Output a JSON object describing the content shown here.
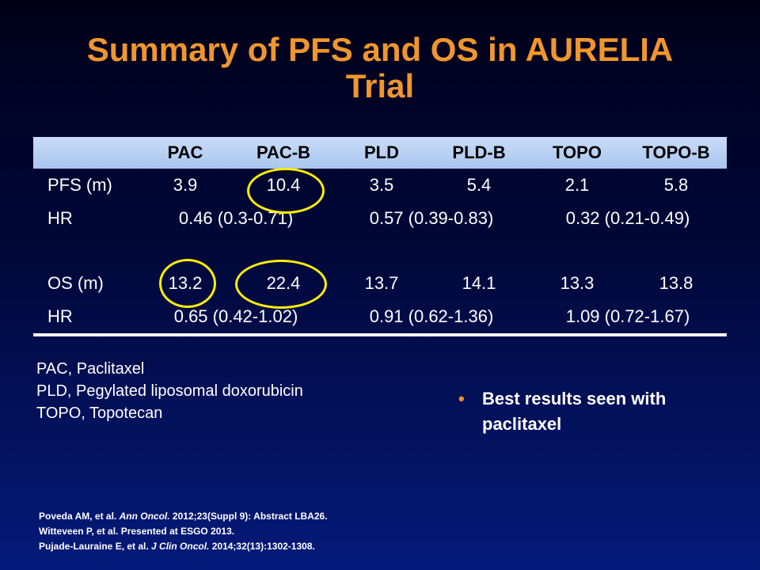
{
  "title": {
    "line1": "Summary of PFS and OS in AURELIA",
    "line2": "Trial"
  },
  "table": {
    "headers": [
      "",
      "PAC",
      "PAC-B",
      "PLD",
      "PLD-B",
      "TOPO",
      "TOPO-B"
    ],
    "pfs": {
      "label": "PFS (m)",
      "values": [
        "3.9",
        "10.4",
        "3.5",
        "5.4",
        "2.1",
        "5.8"
      ]
    },
    "pfs_hr": {
      "label": "HR",
      "values": [
        "0.46 (0.3-0.71)",
        "0.57 (0.39-0.83)",
        "0.32 (0.21-0.49)"
      ]
    },
    "os": {
      "label": "OS (m)",
      "values": [
        "13.2",
        "22.4",
        "13.7",
        "14.1",
        "13.3",
        "13.8"
      ]
    },
    "os_hr": {
      "label": "HR",
      "values": [
        "0.65 (0.42-1.02)",
        "0.91 (0.62-1.36)",
        "1.09 (0.72-1.67)"
      ]
    },
    "highlight_color": "#ffee00"
  },
  "abbreviations": [
    "PAC, Paclitaxel",
    "PLD, Pegylated liposomal doxorubicin",
    "TOPO, Topotecan"
  ],
  "bullet": {
    "marker": "•",
    "text": "Best results seen with paclitaxel"
  },
  "references": [
    {
      "before": "Poveda AM, et al. ",
      "journal": "Ann Oncol.",
      "after": " 2012;23(Suppl 9): Abstract LBA26."
    },
    {
      "before": "Witteveen P, et al. Presented at ESGO 2013.",
      "journal": "",
      "after": ""
    },
    {
      "before": "Pujade-Lauraine E, et al. ",
      "journal": "J Clin Oncol.",
      "after": " 2014;32(13):1302-1308."
    }
  ],
  "colors": {
    "title": "#f0962c",
    "header_bg": "#b8d0f2",
    "highlight": "#ffee00"
  }
}
